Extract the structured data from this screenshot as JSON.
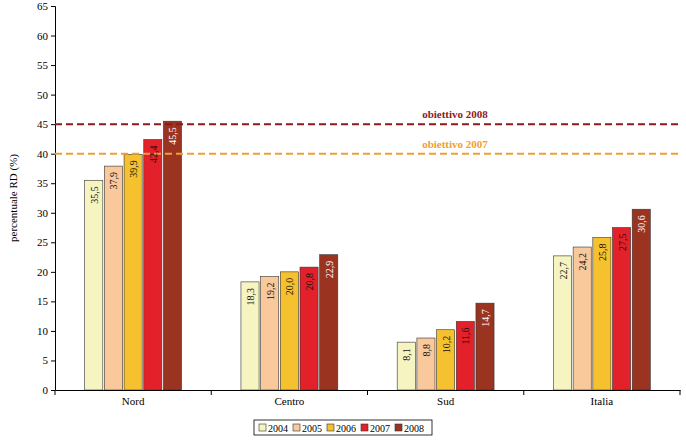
{
  "chart_data": {
    "type": "bar",
    "y_label": "percentuale RD (%)",
    "categories": [
      "Nord",
      "Centro",
      "Sud",
      "Italia"
    ],
    "series": [
      {
        "name": "2004",
        "color": "#f6f5c2",
        "values": [
          35.5,
          18.3,
          8.1,
          22.7
        ],
        "value_labels": [
          "35,5",
          "18,3",
          "8,1",
          "22,7"
        ]
      },
      {
        "name": "2005",
        "color": "#f9c89b",
        "values": [
          37.9,
          19.2,
          8.8,
          24.2
        ],
        "value_labels": [
          "37,9",
          "19,2",
          "8,8",
          "24,2"
        ]
      },
      {
        "name": "2006",
        "color": "#f6c12f",
        "values": [
          39.9,
          20.0,
          10.2,
          25.8
        ],
        "value_labels": [
          "39,9",
          "20,0",
          "10,2",
          "25,8"
        ]
      },
      {
        "name": "2007",
        "color": "#e3212a",
        "values": [
          42.4,
          20.8,
          11.6,
          27.5
        ],
        "value_labels": [
          "42,4",
          "20,8",
          "11,6",
          "27,5"
        ]
      },
      {
        "name": "2008",
        "color": "#9b3321",
        "values": [
          45.5,
          22.9,
          14.7,
          30.6
        ],
        "value_labels": [
          "45,5",
          "22,9",
          "14,7",
          "30,6"
        ]
      }
    ],
    "ylim": [
      0,
      65
    ],
    "yticks": [
      0,
      5,
      10,
      15,
      20,
      25,
      30,
      35,
      40,
      45,
      50,
      55,
      60,
      65
    ],
    "grid": false,
    "data_labels": true,
    "legend": "bottom",
    "annotations": [
      {
        "text": "obiettivo 2008",
        "value": 45,
        "color": "#8b1a1a",
        "line_style": "dashed"
      },
      {
        "text": "obiettivo 2007",
        "value": 40,
        "color": "#f0a030",
        "line_style": "dashed"
      }
    ]
  }
}
